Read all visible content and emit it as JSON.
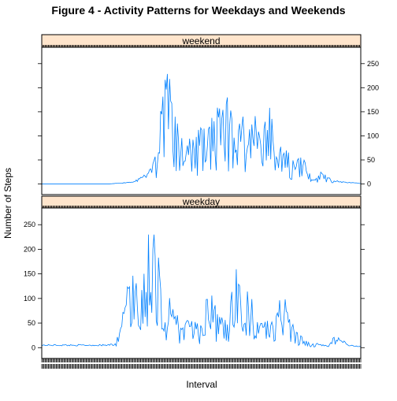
{
  "chart_data": {
    "type": "line",
    "title": "Figure 4 - Activity Patterns for Weekdays and Weekends",
    "xlabel": "Interval",
    "ylabel": "Number of Steps",
    "ylim": [
      -22,
      284
    ],
    "yticks": [
      0,
      50,
      100,
      150,
      200,
      250
    ],
    "x_interval_count": 288,
    "colors": {
      "line": "#0080ff",
      "strip": "#ffe5cc"
    },
    "panels": [
      {
        "name": "weekend",
        "y_axis_side": "right",
        "x": [
          0,
          12,
          24,
          36,
          48,
          60,
          72,
          84,
          96,
          102,
          108,
          114,
          120,
          126,
          132,
          138,
          144,
          150,
          156,
          162,
          168,
          174,
          180,
          186,
          192,
          198,
          204,
          210,
          216,
          222,
          228,
          234,
          240,
          246,
          252,
          258,
          264,
          270,
          276,
          282,
          287
        ],
        "values": [
          0,
          0,
          0,
          0,
          0,
          0,
          2,
          5,
          25,
          60,
          175,
          245,
          120,
          95,
          80,
          75,
          115,
          100,
          150,
          130,
          170,
          110,
          145,
          90,
          130,
          85,
          150,
          100,
          80,
          60,
          40,
          55,
          20,
          10,
          25,
          12,
          6,
          4,
          3,
          2,
          1
        ]
      },
      {
        "name": "weekday",
        "y_axis_side": "left",
        "x": [
          0,
          12,
          24,
          36,
          48,
          60,
          66,
          72,
          78,
          84,
          90,
          96,
          102,
          108,
          114,
          120,
          126,
          132,
          138,
          144,
          150,
          156,
          162,
          168,
          174,
          180,
          186,
          192,
          198,
          204,
          210,
          216,
          222,
          228,
          234,
          240,
          246,
          252,
          258,
          264,
          270,
          276,
          282,
          287
        ],
        "values": [
          5,
          5,
          5,
          5,
          5,
          5,
          10,
          50,
          120,
          150,
          100,
          255,
          230,
          110,
          90,
          60,
          45,
          55,
          50,
          40,
          110,
          75,
          55,
          40,
          160,
          90,
          130,
          70,
          45,
          55,
          40,
          125,
          60,
          30,
          20,
          10,
          8,
          5,
          3,
          25,
          15,
          5,
          3,
          2
        ]
      }
    ]
  }
}
